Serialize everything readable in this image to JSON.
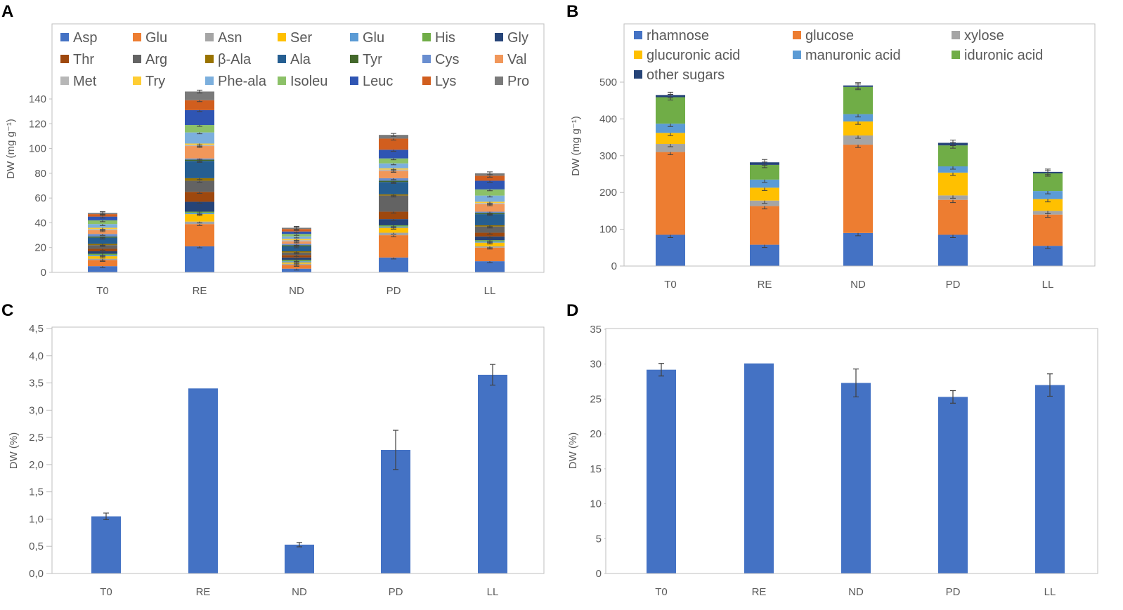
{
  "chart_data": [
    {
      "id": "A",
      "panel_label": "A",
      "type": "bar",
      "stacked": true,
      "ylabel": "DW (mg g⁻¹)",
      "ylim": [
        0,
        140
      ],
      "yticks": [
        "0",
        "20",
        "40",
        "60",
        "80",
        "100",
        "120",
        "140"
      ],
      "categories": [
        "T0",
        "RE",
        "ND",
        "PD",
        "LL"
      ],
      "series": [
        {
          "name": "Asp",
          "color": "#4472C4",
          "values": [
            5,
            21,
            3,
            12,
            9
          ]
        },
        {
          "name": "Glu",
          "color": "#ED7D31",
          "values": [
            5,
            18,
            3,
            18,
            11
          ]
        },
        {
          "name": "Asn",
          "color": "#A5A5A5",
          "values": [
            1,
            2,
            1,
            2,
            1
          ]
        },
        {
          "name": "Ser",
          "color": "#FFC000",
          "values": [
            2,
            6,
            1,
            4,
            3
          ]
        },
        {
          "name": "Glu",
          "color": "#5B9BD5",
          "values": [
            1,
            1,
            1,
            1,
            1
          ]
        },
        {
          "name": "His",
          "color": "#70AD47",
          "values": [
            1,
            1,
            1,
            1,
            1
          ]
        },
        {
          "name": "Gly",
          "color": "#264478",
          "values": [
            2,
            8,
            2,
            5,
            3
          ]
        },
        {
          "name": "Thr",
          "color": "#9E480E",
          "values": [
            2,
            8,
            2,
            6,
            3
          ]
        },
        {
          "name": "Arg",
          "color": "#636363",
          "values": [
            3,
            9,
            2,
            13,
            5
          ]
        },
        {
          "name": "β-Ala",
          "color": "#997300",
          "values": [
            1,
            2,
            1,
            1,
            1
          ]
        },
        {
          "name": "Ala",
          "color": "#255E91",
          "values": [
            5,
            14,
            4,
            10,
            9
          ]
        },
        {
          "name": "Tyr",
          "color": "#43682B",
          "values": [
            1,
            1,
            1,
            1,
            1
          ]
        },
        {
          "name": "Cys",
          "color": "#698ED0",
          "values": [
            2,
            1,
            1,
            2,
            1
          ]
        },
        {
          "name": "Val",
          "color": "#F1975A",
          "values": [
            3,
            10,
            2,
            6,
            6
          ]
        },
        {
          "name": "Met",
          "color": "#B7B7B7",
          "values": [
            1,
            1,
            1,
            1,
            1
          ]
        },
        {
          "name": "Try",
          "color": "#FFCD33",
          "values": [
            1,
            1,
            1,
            1,
            1
          ]
        },
        {
          "name": "Phe-ala",
          "color": "#7CAFDD",
          "values": [
            3,
            9,
            2,
            4,
            5
          ]
        },
        {
          "name": "Isoleu",
          "color": "#8CC168",
          "values": [
            3,
            6,
            2,
            4,
            5
          ]
        },
        {
          "name": "Leuc",
          "color": "#2F55B3",
          "values": [
            3,
            12,
            2,
            7,
            7
          ]
        },
        {
          "name": "Lys",
          "color": "#D15E1E",
          "values": [
            2,
            8,
            2,
            9,
            4
          ]
        },
        {
          "name": "Pro",
          "color": "#7A7A7A",
          "values": [
            1,
            7,
            1,
            3,
            2
          ]
        }
      ]
    },
    {
      "id": "B",
      "panel_label": "B",
      "type": "bar",
      "stacked": true,
      "ylabel": "DW (mg g⁻¹)",
      "ylim": [
        0,
        500
      ],
      "yticks": [
        "0",
        "100",
        "200",
        "300",
        "400",
        "500"
      ],
      "categories": [
        "T0",
        "RE",
        "ND",
        "PD",
        "LL"
      ],
      "series": [
        {
          "name": "rhamnose",
          "color": "#4472C4",
          "values": [
            85,
            58,
            90,
            85,
            55
          ]
        },
        {
          "name": "glucose",
          "color": "#ED7D31",
          "values": [
            225,
            105,
            240,
            95,
            85
          ]
        },
        {
          "name": "xylose",
          "color": "#A5A5A5",
          "values": [
            22,
            15,
            25,
            12,
            10
          ]
        },
        {
          "name": "glucuronic acid",
          "color": "#FFC000",
          "values": [
            30,
            35,
            38,
            62,
            32
          ]
        },
        {
          "name": "manuronic acid",
          "color": "#5B9BD5",
          "values": [
            25,
            22,
            20,
            17,
            22
          ]
        },
        {
          "name": "iduronic acid",
          "color": "#70AD47",
          "values": [
            72,
            40,
            74,
            57,
            48
          ]
        },
        {
          "name": "other sugars",
          "color": "#264478",
          "values": [
            6,
            7,
            4,
            7,
            4
          ]
        }
      ]
    },
    {
      "id": "C",
      "panel_label": "C",
      "type": "bar",
      "ylabel": "DW (%)",
      "ylim": [
        0,
        4.5
      ],
      "yticks": [
        "0,0",
        "0,5",
        "1,0",
        "1,5",
        "2,0",
        "2,5",
        "3,0",
        "3,5",
        "4,0",
        "4,5"
      ],
      "categories": [
        "T0",
        "RE",
        "ND",
        "PD",
        "LL"
      ],
      "values": [
        1.05,
        3.4,
        0.53,
        2.27,
        3.65
      ],
      "errors": [
        0.06,
        0,
        0.04,
        0.36,
        0.19
      ],
      "color": "#4472C4"
    },
    {
      "id": "D",
      "panel_label": "D",
      "type": "bar",
      "ylabel": "DW (%)",
      "ylim": [
        0,
        35
      ],
      "yticks": [
        "0",
        "5",
        "10",
        "15",
        "20",
        "25",
        "30",
        "35"
      ],
      "categories": [
        "T0",
        "RE",
        "ND",
        "PD",
        "LL"
      ],
      "values": [
        29.2,
        30.1,
        27.3,
        25.3,
        27.0
      ],
      "errors": [
        0.9,
        0,
        2.0,
        0.9,
        1.6
      ],
      "color": "#4472C4"
    }
  ]
}
